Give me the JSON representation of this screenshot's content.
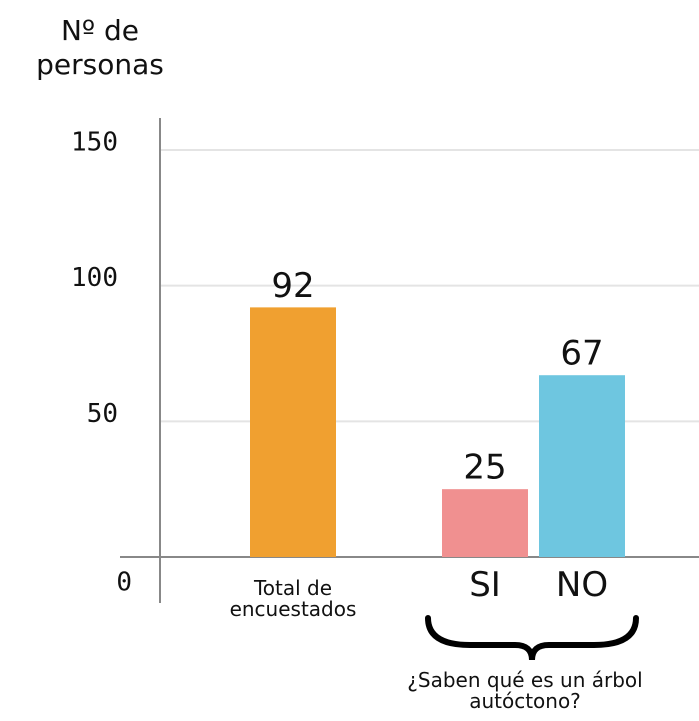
{
  "chart_data": {
    "type": "bar",
    "ylabel": "Nº de personas",
    "categories": [
      "Total de encuestados",
      "SI",
      "NO"
    ],
    "values": [
      92,
      25,
      67
    ],
    "colors": [
      "#f0a030",
      "#f09090",
      "#6ec6e0"
    ],
    "annotation": "¿Saben qué es un árbol autóctono?",
    "ylim": [
      0,
      150
    ],
    "yticks": [
      0,
      50,
      100,
      150
    ],
    "grid": true
  }
}
